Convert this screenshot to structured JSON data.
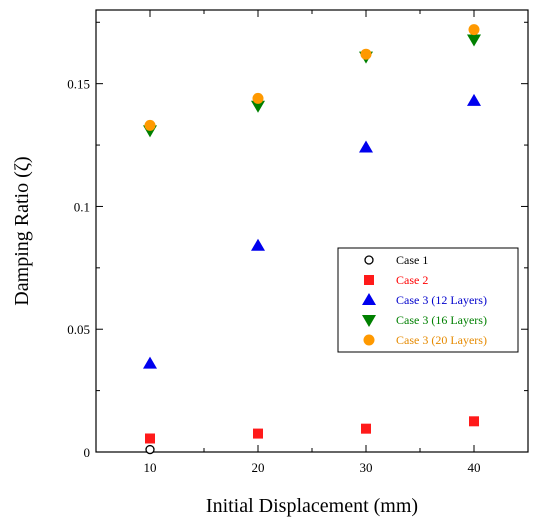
{
  "chart_data": {
    "type": "scatter",
    "xlabel": "Initial Displacement (mm)",
    "ylabel": "Damping Ratio (ζ)",
    "xlim": [
      5,
      45
    ],
    "ylim": [
      0,
      0.18
    ],
    "xticks": [
      10,
      20,
      30,
      40
    ],
    "yticks": [
      0,
      0.05,
      0.1,
      0.15
    ],
    "ytick_labels": [
      "0",
      "0.05",
      "0.1",
      "0.15"
    ],
    "grid": false,
    "legend_position": "center-right",
    "x": [
      10,
      20,
      30,
      40
    ],
    "series": [
      {
        "name": "Case 1",
        "marker": "open-circle",
        "color": "#000000",
        "text_color": "#000000",
        "values": [
          0.001,
          null,
          null,
          null
        ]
      },
      {
        "name": "Case 2",
        "marker": "square",
        "color": "#ff1a1a",
        "text_color": "#ff0000",
        "values": [
          0.0055,
          0.0075,
          0.0095,
          0.0125
        ]
      },
      {
        "name": "Case 3 (12 Layers)",
        "marker": "triangle-up",
        "color": "#0000ee",
        "text_color": "#0000cc",
        "values": [
          0.036,
          0.084,
          0.124,
          0.143
        ]
      },
      {
        "name": "Case 3 (16 Layers)",
        "marker": "triangle-down",
        "color": "#008000",
        "text_color": "#008000",
        "values": [
          0.131,
          0.141,
          0.161,
          0.168
        ]
      },
      {
        "name": "Case 3 (20 Layers)",
        "marker": "circle",
        "color": "#ff9900",
        "text_color": "#e68a00",
        "values": [
          0.133,
          0.144,
          0.162,
          0.172
        ]
      }
    ]
  }
}
